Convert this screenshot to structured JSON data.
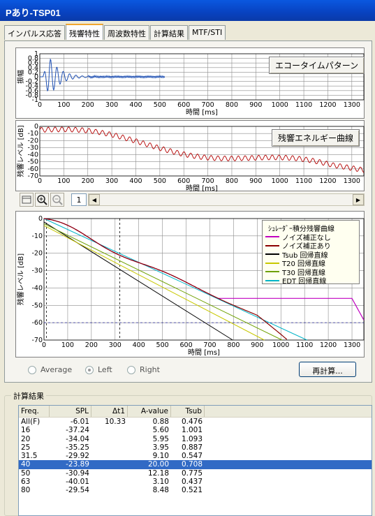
{
  "window": {
    "title": "Pあり-TSP01"
  },
  "tabs": [
    "インパルス応答",
    "残響特性",
    "周波数特性",
    "計算結果",
    "MTF/STI"
  ],
  "active_tab": 1,
  "graphs": {
    "echo": {
      "button": "エコータイムパターン",
      "ylabel": "振幅",
      "xlabel": "時間 [ms]",
      "xticks": [
        0,
        100,
        200,
        300,
        400,
        500,
        600,
        700,
        800,
        900,
        1000,
        1100,
        1200,
        1300
      ],
      "yticks": [
        1,
        0.8,
        0.6,
        0.4,
        0.2,
        0,
        -0.2,
        -0.4,
        -0.6,
        -0.8,
        -1
      ]
    },
    "energy": {
      "button": "残響エネルギー曲線",
      "ylabel": "残響レベル [dB]",
      "xlabel": "時間 [ms]",
      "xticks": [
        0,
        100,
        200,
        300,
        400,
        500,
        600,
        700,
        800,
        900,
        1000,
        1100,
        1200,
        1300
      ],
      "yticks": [
        0,
        -10,
        -20,
        -30,
        -40,
        -50,
        -60,
        -70
      ]
    },
    "schroeder": {
      "ylabel": "残響レベル [dB]",
      "xlabel": "時間 [ms]",
      "xticks": [
        0,
        100,
        200,
        300,
        400,
        500,
        600,
        700,
        800,
        900,
        1000,
        1100,
        1200,
        1300
      ],
      "yticks": [
        0,
        -10,
        -20,
        -30,
        -40,
        -50,
        -60,
        -70
      ],
      "legend_title": "ｼｭﾚｰﾀﾞｰ積分残響曲線",
      "legend": [
        {
          "label": "ノイズ補正なし",
          "color": "#c000c0"
        },
        {
          "label": "ノイズ補正あり",
          "color": "#8b0000"
        },
        {
          "label": "Tsub 回帰直線",
          "color": "#000000"
        },
        {
          "label": "T20 回帰直線",
          "color": "#c8c800"
        },
        {
          "label": "T30 回帰直線",
          "color": "#6ea000"
        },
        {
          "label": "EDT 回帰直線",
          "color": "#00b4c8"
        }
      ]
    }
  },
  "toolbar": {
    "page": "1"
  },
  "radios": [
    {
      "label": "Average",
      "checked": false
    },
    {
      "label": "Left",
      "checked": true
    },
    {
      "label": "Right",
      "checked": false
    }
  ],
  "recalc_label": "再計算...",
  "results": {
    "group_title": "計算結果",
    "columns": [
      "Freq.",
      "SPL",
      "Δt1",
      "A-value",
      "Tsub"
    ],
    "rows": [
      [
        "All(F)",
        "-6.01",
        "10.33",
        "0.88",
        "0.476"
      ],
      [
        "16",
        "-37.24",
        "",
        "5.60",
        "1.001"
      ],
      [
        "20",
        "-34.04",
        "",
        "5.95",
        "1.093"
      ],
      [
        "25",
        "-35.25",
        "",
        "3.95",
        "0.887"
      ],
      [
        "31.5",
        "-29.92",
        "",
        "9.10",
        "0.547"
      ],
      [
        "40",
        "-23.89",
        "",
        "20.00",
        "0.708"
      ],
      [
        "50",
        "-30.94",
        "",
        "12.18",
        "0.775"
      ],
      [
        "63",
        "-40.01",
        "",
        "3.10",
        "0.437"
      ],
      [
        "80",
        "-29.54",
        "",
        "8.48",
        "0.521"
      ]
    ],
    "selected_row": 5
  }
}
